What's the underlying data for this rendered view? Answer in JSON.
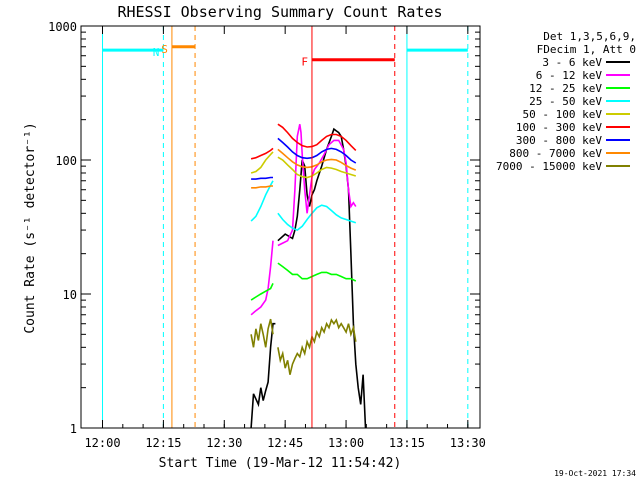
{
  "chart_data": {
    "type": "line",
    "title": "RHESSI Observing Summary Count Rates",
    "xlabel": "Start Time (19-Mar-12 11:54:42)",
    "ylabel": "Count Rate (s⁻¹ detector⁻¹)",
    "x_scale": "time",
    "y_scale": "log",
    "xlim": [
      "11:54:42",
      "13:33:00"
    ],
    "ylim": [
      1,
      1000
    ],
    "x_ticks": [
      "12:00",
      "12:15",
      "12:30",
      "12:45",
      "13:00",
      "13:15",
      "13:30"
    ],
    "y_ticks": [
      "1",
      "10",
      "100",
      "1000"
    ],
    "footer": "19-Oct-2021 17:34",
    "legend_header": [
      "Det 1,3,5,6,9,",
      "FDecim 1, Att 0"
    ],
    "legend_position": "right",
    "series": [
      {
        "name": "3 - 6 keV",
        "color": "#000000",
        "seg1": [
          [
            12.61,
            1.0
          ],
          [
            12.62,
            1.8
          ],
          [
            12.64,
            1.5
          ],
          [
            12.65,
            2.0
          ],
          [
            12.66,
            1.6
          ],
          [
            12.67,
            1.9
          ],
          [
            12.68,
            2.2
          ],
          [
            12.69,
            4.0
          ],
          [
            12.7,
            6.0
          ],
          [
            12.71,
            6.0
          ]
        ],
        "seg2": [
          [
            12.72,
            25
          ],
          [
            12.75,
            28
          ],
          [
            12.78,
            26
          ],
          [
            12.79,
            30
          ],
          [
            12.8,
            38
          ],
          [
            12.81,
            60
          ],
          [
            12.82,
            100
          ],
          [
            12.83,
            90
          ],
          [
            12.84,
            55
          ],
          [
            12.85,
            45
          ],
          [
            12.86,
            55
          ],
          [
            12.87,
            60
          ],
          [
            12.88,
            70
          ],
          [
            12.9,
            90
          ],
          [
            12.92,
            120
          ],
          [
            12.94,
            150
          ],
          [
            12.95,
            170
          ],
          [
            12.96,
            165
          ],
          [
            12.97,
            160
          ],
          [
            12.98,
            150
          ],
          [
            12.99,
            120
          ],
          [
            13.0,
            90
          ],
          [
            13.01,
            60
          ],
          [
            13.02,
            20
          ],
          [
            13.03,
            6
          ],
          [
            13.04,
            3
          ],
          [
            13.05,
            2
          ],
          [
            13.06,
            1.5
          ],
          [
            13.07,
            2.5
          ],
          [
            13.08,
            1.0
          ]
        ]
      },
      {
        "name": "6 - 12 keV",
        "color": "#ff00ff",
        "seg1": [
          [
            12.61,
            7.0
          ],
          [
            12.63,
            7.5
          ],
          [
            12.65,
            8.0
          ],
          [
            12.67,
            9.0
          ],
          [
            12.68,
            11
          ],
          [
            12.69,
            16
          ],
          [
            12.7,
            25
          ]
        ],
        "seg2": [
          [
            12.72,
            23
          ],
          [
            12.74,
            24
          ],
          [
            12.76,
            25
          ],
          [
            12.78,
            30
          ],
          [
            12.79,
            60
          ],
          [
            12.8,
            150
          ],
          [
            12.81,
            185
          ],
          [
            12.815,
            160
          ],
          [
            12.82,
            110
          ],
          [
            12.83,
            60
          ],
          [
            12.84,
            40
          ],
          [
            12.85,
            55
          ],
          [
            12.86,
            75
          ],
          [
            12.87,
            85
          ],
          [
            12.89,
            95
          ],
          [
            12.91,
            110
          ],
          [
            12.93,
            130
          ],
          [
            12.95,
            140
          ],
          [
            12.97,
            140
          ],
          [
            12.99,
            120
          ],
          [
            13.0,
            95
          ],
          [
            13.01,
            60
          ],
          [
            13.02,
            45
          ],
          [
            13.03,
            48
          ],
          [
            13.04,
            45
          ]
        ]
      },
      {
        "name": "12 - 25 keV",
        "color": "#00ff00",
        "seg1": [
          [
            12.61,
            9.0
          ],
          [
            12.63,
            9.5
          ],
          [
            12.65,
            10
          ],
          [
            12.67,
            10.5
          ],
          [
            12.69,
            11
          ],
          [
            12.7,
            12
          ]
        ],
        "seg2": [
          [
            12.72,
            17
          ],
          [
            12.74,
            16
          ],
          [
            12.76,
            15
          ],
          [
            12.78,
            14
          ],
          [
            12.8,
            14
          ],
          [
            12.82,
            13
          ],
          [
            12.84,
            13
          ],
          [
            12.86,
            13.5
          ],
          [
            12.88,
            14
          ],
          [
            12.9,
            14.5
          ],
          [
            12.92,
            14.5
          ],
          [
            12.94,
            14
          ],
          [
            12.96,
            14
          ],
          [
            12.98,
            13.5
          ],
          [
            13.0,
            13
          ],
          [
            13.02,
            13
          ],
          [
            13.04,
            12.5
          ]
        ]
      },
      {
        "name": "25 - 50 keV",
        "color": "#00ffff",
        "seg1": [
          [
            12.61,
            35
          ],
          [
            12.63,
            38
          ],
          [
            12.65,
            45
          ],
          [
            12.67,
            55
          ],
          [
            12.69,
            65
          ],
          [
            12.7,
            70
          ]
        ],
        "seg2": [
          [
            12.72,
            40
          ],
          [
            12.74,
            36
          ],
          [
            12.76,
            33
          ],
          [
            12.78,
            31
          ],
          [
            12.8,
            30
          ],
          [
            12.82,
            32
          ],
          [
            12.84,
            36
          ],
          [
            12.86,
            40
          ],
          [
            12.88,
            44
          ],
          [
            12.9,
            46
          ],
          [
            12.92,
            45
          ],
          [
            12.94,
            42
          ],
          [
            12.96,
            39
          ],
          [
            12.98,
            37
          ],
          [
            13.0,
            36
          ],
          [
            13.02,
            35
          ],
          [
            13.04,
            34
          ]
        ]
      },
      {
        "name": "50 - 100 keV",
        "color": "#cccc00",
        "seg1": [
          [
            12.61,
            80
          ],
          [
            12.63,
            82
          ],
          [
            12.65,
            88
          ],
          [
            12.67,
            100
          ],
          [
            12.69,
            110
          ],
          [
            12.7,
            115
          ]
        ],
        "seg2": [
          [
            12.72,
            105
          ],
          [
            12.74,
            100
          ],
          [
            12.76,
            92
          ],
          [
            12.78,
            85
          ],
          [
            12.8,
            78
          ],
          [
            12.82,
            75
          ],
          [
            12.84,
            74
          ],
          [
            12.86,
            76
          ],
          [
            12.88,
            80
          ],
          [
            12.9,
            85
          ],
          [
            12.92,
            88
          ],
          [
            12.94,
            87
          ],
          [
            12.96,
            85
          ],
          [
            12.98,
            82
          ],
          [
            13.0,
            80
          ],
          [
            13.02,
            78
          ],
          [
            13.04,
            76
          ]
        ]
      },
      {
        "name": "100 - 300 keV",
        "color": "#ff0000",
        "seg1": [
          [
            12.61,
            102
          ],
          [
            12.63,
            104
          ],
          [
            12.65,
            108
          ],
          [
            12.67,
            112
          ],
          [
            12.69,
            118
          ],
          [
            12.7,
            122
          ]
        ],
        "seg2": [
          [
            12.72,
            185
          ],
          [
            12.74,
            175
          ],
          [
            12.76,
            160
          ],
          [
            12.78,
            145
          ],
          [
            12.8,
            135
          ],
          [
            12.82,
            128
          ],
          [
            12.84,
            125
          ],
          [
            12.86,
            126
          ],
          [
            12.88,
            130
          ],
          [
            12.9,
            140
          ],
          [
            12.92,
            150
          ],
          [
            12.94,
            155
          ],
          [
            12.96,
            155
          ],
          [
            12.98,
            150
          ],
          [
            13.0,
            140
          ],
          [
            13.02,
            128
          ],
          [
            13.04,
            118
          ]
        ]
      },
      {
        "name": "300 - 800 keV",
        "color": "#0000ff",
        "seg1": [
          [
            12.61,
            72
          ],
          [
            12.63,
            72
          ],
          [
            12.65,
            73
          ],
          [
            12.67,
            73
          ],
          [
            12.69,
            74
          ],
          [
            12.7,
            74
          ]
        ],
        "seg2": [
          [
            12.72,
            145
          ],
          [
            12.74,
            135
          ],
          [
            12.76,
            125
          ],
          [
            12.78,
            115
          ],
          [
            12.8,
            108
          ],
          [
            12.82,
            104
          ],
          [
            12.84,
            103
          ],
          [
            12.86,
            104
          ],
          [
            12.88,
            108
          ],
          [
            12.9,
            115
          ],
          [
            12.92,
            120
          ],
          [
            12.94,
            122
          ],
          [
            12.96,
            120
          ],
          [
            12.98,
            115
          ],
          [
            13.0,
            108
          ],
          [
            13.02,
            100
          ],
          [
            13.04,
            95
          ]
        ]
      },
      {
        "name": "800 - 7000 keV",
        "color": "#ff8800",
        "seg1": [
          [
            12.61,
            62
          ],
          [
            12.63,
            62
          ],
          [
            12.65,
            63
          ],
          [
            12.67,
            63
          ],
          [
            12.69,
            64
          ],
          [
            12.7,
            64
          ]
        ],
        "seg2": [
          [
            12.72,
            120
          ],
          [
            12.74,
            112
          ],
          [
            12.76,
            104
          ],
          [
            12.78,
            97
          ],
          [
            12.8,
            92
          ],
          [
            12.82,
            89
          ],
          [
            12.84,
            88
          ],
          [
            12.86,
            89
          ],
          [
            12.88,
            92
          ],
          [
            12.9,
            97
          ],
          [
            12.92,
            100
          ],
          [
            12.94,
            101
          ],
          [
            12.96,
            100
          ],
          [
            12.98,
            96
          ],
          [
            13.0,
            91
          ],
          [
            13.02,
            87
          ],
          [
            13.04,
            84
          ]
        ]
      },
      {
        "name": "7000 - 15000 keV",
        "color": "#808000",
        "seg1": [
          [
            12.61,
            5.0
          ],
          [
            12.62,
            4.0
          ],
          [
            12.63,
            5.5
          ],
          [
            12.64,
            4.5
          ],
          [
            12.65,
            6.0
          ],
          [
            12.66,
            5.0
          ],
          [
            12.67,
            4.0
          ],
          [
            12.68,
            5.5
          ],
          [
            12.69,
            6.5
          ],
          [
            12.7,
            5.0
          ]
        ],
        "seg2": [
          [
            12.72,
            4.0
          ],
          [
            12.73,
            3.2
          ],
          [
            12.74,
            3.6
          ],
          [
            12.75,
            2.8
          ],
          [
            12.76,
            3.2
          ],
          [
            12.77,
            2.5
          ],
          [
            12.78,
            3.0
          ],
          [
            12.79,
            3.3
          ],
          [
            12.8,
            3.6
          ],
          [
            12.81,
            3.4
          ],
          [
            12.82,
            4.0
          ],
          [
            12.83,
            3.6
          ],
          [
            12.84,
            4.4
          ],
          [
            12.85,
            4.0
          ],
          [
            12.86,
            4.8
          ],
          [
            12.87,
            4.4
          ],
          [
            12.88,
            5.2
          ],
          [
            12.89,
            4.8
          ],
          [
            12.9,
            5.6
          ],
          [
            12.91,
            5.2
          ],
          [
            12.92,
            6.0
          ],
          [
            12.93,
            5.6
          ],
          [
            12.94,
            6.4
          ],
          [
            12.95,
            6.0
          ],
          [
            12.96,
            6.4
          ],
          [
            12.97,
            5.6
          ],
          [
            12.98,
            6.0
          ],
          [
            12.99,
            5.6
          ],
          [
            13.0,
            5.2
          ],
          [
            13.01,
            6.0
          ],
          [
            13.02,
            5.0
          ],
          [
            13.03,
            5.6
          ],
          [
            13.04,
            4.4
          ]
        ]
      }
    ],
    "annotations": [
      {
        "label": "N",
        "color": "#00ffff",
        "intervals": [
          [
            12.0,
            12.25
          ],
          [
            13.25,
            13.5
          ]
        ],
        "level": 660,
        "marker_time": 12.25,
        "dashed_at": [
          12.25,
          13.5
        ]
      },
      {
        "label": "S",
        "color": "#ff8800",
        "intervals": [
          [
            12.285,
            12.38
          ]
        ],
        "level": 700,
        "marker_time": 12.285
      },
      {
        "label": "F",
        "color": "#ff0000",
        "intervals": [
          [
            12.86,
            13.2
          ]
        ],
        "level": 560,
        "marker_time": 12.86
      }
    ]
  }
}
